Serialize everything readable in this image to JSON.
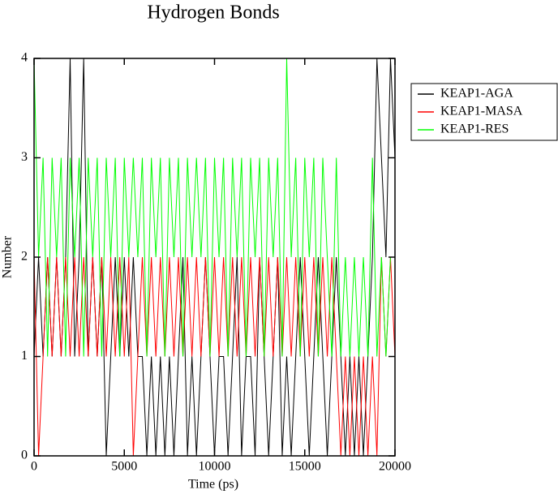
{
  "chart_data": {
    "type": "line",
    "title": "Hydrogen Bonds",
    "xlabel": "Time (ps)",
    "ylabel": "Number",
    "xlim": [
      0,
      20000
    ],
    "ylim": [
      0,
      4
    ],
    "xticks": [
      0,
      5000,
      10000,
      15000,
      20000
    ],
    "yticks": [
      0,
      1,
      2,
      3,
      4
    ],
    "grid": false,
    "legend": "right",
    "x": [
      0,
      250,
      500,
      750,
      1000,
      1250,
      1500,
      1750,
      2000,
      2250,
      2500,
      2750,
      3000,
      3250,
      3500,
      3750,
      4000,
      4250,
      4500,
      4750,
      5000,
      5250,
      5500,
      5750,
      6000,
      6250,
      6500,
      6750,
      7000,
      7250,
      7500,
      7750,
      8000,
      8250,
      8500,
      8750,
      9000,
      9250,
      9500,
      9750,
      10000,
      10250,
      10500,
      10750,
      11000,
      11250,
      11500,
      11750,
      12000,
      12250,
      12500,
      12750,
      13000,
      13250,
      13500,
      13750,
      14000,
      14250,
      14500,
      14750,
      15000,
      15250,
      15500,
      15750,
      16000,
      16250,
      16500,
      16750,
      17000,
      17250,
      17500,
      17750,
      18000,
      18250,
      18500,
      18750,
      19000,
      19250,
      19500,
      19750,
      20000
    ],
    "series": [
      {
        "name": "KEAP1-AGA",
        "color": "#000000",
        "values": [
          1,
          2,
          1,
          2,
          1,
          2,
          1,
          2,
          4,
          1,
          2,
          4,
          1,
          2,
          1,
          2,
          0,
          1,
          2,
          1,
          2,
          1,
          2,
          1,
          1,
          0,
          1,
          0,
          1,
          0,
          1,
          0,
          1,
          2,
          0,
          1,
          0,
          1,
          2,
          1,
          0,
          1,
          1,
          0,
          1,
          2,
          0,
          1,
          1,
          0,
          2,
          1,
          0,
          1,
          2,
          0,
          1,
          0,
          1,
          2,
          1,
          0,
          1,
          2,
          1,
          0,
          1,
          2,
          1,
          0,
          1,
          0,
          1,
          0,
          1,
          2,
          4,
          3,
          2,
          4,
          3
        ]
      },
      {
        "name": "KEAP1-MASA",
        "color": "#ff0000",
        "values": [
          2,
          0,
          1,
          2,
          1,
          2,
          1,
          2,
          1,
          2,
          1,
          2,
          1,
          2,
          1,
          2,
          1,
          2,
          1,
          2,
          1,
          2,
          0,
          1,
          2,
          1,
          2,
          1,
          2,
          1,
          2,
          1,
          2,
          1,
          2,
          1,
          2,
          1,
          2,
          1,
          2,
          1,
          2,
          1,
          2,
          1,
          2,
          1,
          2,
          1,
          2,
          1,
          2,
          1,
          2,
          1,
          2,
          1,
          2,
          1,
          2,
          1,
          2,
          1,
          2,
          1,
          2,
          1,
          0,
          1,
          0,
          1,
          0,
          1,
          0,
          1,
          0,
          2,
          1,
          2,
          1
        ]
      },
      {
        "name": "KEAP1-RES",
        "color": "#00ff00",
        "values": [
          4,
          2,
          3,
          1,
          3,
          2,
          3,
          1,
          3,
          2,
          3,
          1,
          3,
          2,
          3,
          1,
          3,
          2,
          3,
          1,
          3,
          2,
          3,
          2,
          3,
          1,
          3,
          2,
          3,
          1,
          3,
          2,
          3,
          1,
          3,
          2,
          3,
          2,
          3,
          1,
          3,
          2,
          3,
          1,
          3,
          2,
          3,
          1,
          3,
          2,
          3,
          1,
          3,
          2,
          3,
          1,
          4,
          2,
          3,
          1,
          3,
          2,
          3,
          1,
          3,
          2,
          1,
          3,
          1,
          2,
          1,
          2,
          1,
          2,
          1,
          3,
          1,
          2,
          1,
          2,
          2
        ]
      }
    ]
  }
}
